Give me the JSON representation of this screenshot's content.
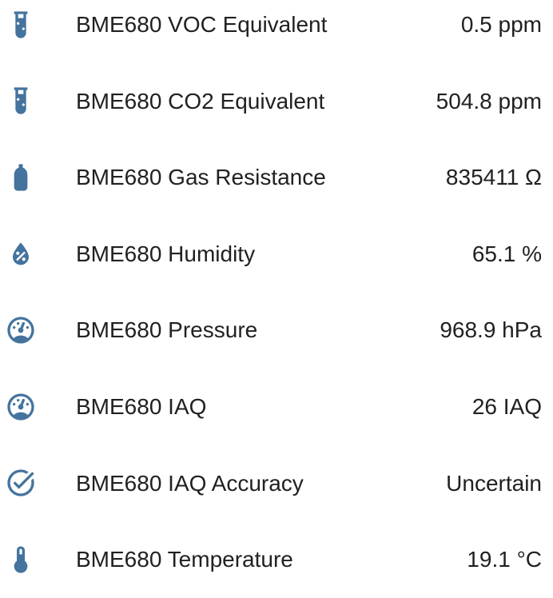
{
  "colors": {
    "icon_accent": "#44739e",
    "text": "#212121",
    "background": "#ffffff"
  },
  "entity_list": {
    "rows": [
      {
        "icon": "test-tube-icon",
        "label": "BME680 VOC Equivalent",
        "value": "0.5 ppm"
      },
      {
        "icon": "test-tube-icon",
        "label": "BME680 CO2 Equivalent",
        "value": "504.8 ppm"
      },
      {
        "icon": "gas-cylinder-icon",
        "label": "BME680 Gas Resistance",
        "value": "835411 Ω"
      },
      {
        "icon": "water-percent-icon",
        "label": "BME680 Humidity",
        "value": "65.1 %"
      },
      {
        "icon": "gauge-icon",
        "label": "BME680 Pressure",
        "value": "968.9 hPa"
      },
      {
        "icon": "gauge-icon",
        "label": "BME680 IAQ",
        "value": "26 IAQ"
      },
      {
        "icon": "check-circle-icon",
        "label": "BME680 IAQ Accuracy",
        "value": "Uncertain"
      },
      {
        "icon": "thermometer-icon",
        "label": "BME680 Temperature",
        "value": "19.1 °C"
      }
    ]
  }
}
